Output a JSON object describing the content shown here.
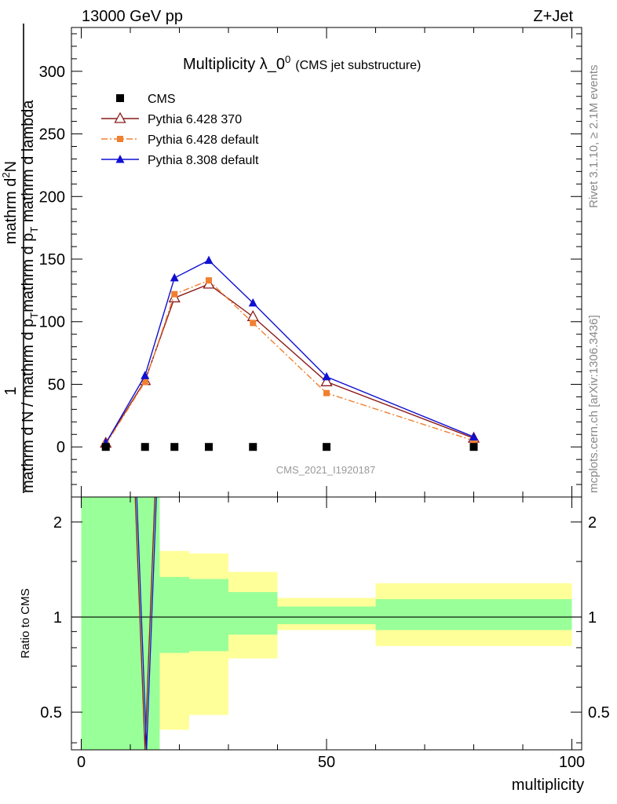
{
  "header": {
    "left": "13000 GeV pp",
    "right": "Z+Jet"
  },
  "side_labels": {
    "top": "Rivet 3.1.10, ≥ 2.1M events",
    "bottom": "mcplots.cern.ch [arXiv:1306.3436]"
  },
  "chart_data": {
    "type": "line",
    "title_main": "Multiplicity λ_0",
    "title_sup": "0",
    "title_note": "(CMS jet substructure)",
    "watermark": "CMS_2021_I1920187",
    "xlabel": "multiplicity",
    "ylabel_numerator": "1",
    "ylabel_denominator_1": "mathrm d N / mathrm d p",
    "ylabel_denominator_sub1": "T",
    "ylabel_denominator_2": "mathrm d p",
    "ylabel_denominator_sub2": "T",
    "ylabel_denominator_3": " mathrm d lambda",
    "ylabel_numerator_full": "mathrm d",
    "ylabel_numerator_sup": "2",
    "ylabel_numerator_end": "N",
    "ratio_ylabel": "Ratio to CMS",
    "xlim": [
      -2,
      102
    ],
    "ylim": [
      -40,
      335
    ],
    "ratio_ylim": [
      0.38,
      2.4
    ],
    "ratio_scale": "log",
    "x_ticks": [
      0,
      50,
      100
    ],
    "x_tick_labels": [
      "0",
      "50",
      "100"
    ],
    "y_ticks": [
      0,
      50,
      100,
      150,
      200,
      250,
      300
    ],
    "y_tick_labels": [
      "0",
      "50",
      "100",
      "150",
      "200",
      "250",
      "300"
    ],
    "ratio_ticks": [
      0.5,
      1,
      2
    ],
    "ratio_tick_labels": [
      "0.5",
      "1",
      "2"
    ],
    "legend_position": "top-left",
    "x": [
      5,
      13,
      19,
      26,
      35,
      50,
      80
    ],
    "series": [
      {
        "name": "CMS",
        "color": "#000000",
        "marker": "square",
        "values": [
          0,
          0,
          0,
          0,
          0,
          0,
          0
        ]
      },
      {
        "name": "Pythia 6.428 370",
        "color": "#8b1a1a",
        "marker": "open-triangle",
        "values": [
          3,
          53,
          119,
          130,
          104,
          52,
          7
        ]
      },
      {
        "name": "Pythia 6.428 default",
        "color": "#f08030",
        "marker": "small-square",
        "values": [
          2,
          52,
          122,
          133,
          99,
          43,
          5
        ]
      },
      {
        "name": "Pythia 8.308 default",
        "color": "#1010d0",
        "marker": "triangle",
        "values": [
          3,
          57,
          135,
          149,
          115,
          56,
          8
        ]
      }
    ],
    "ratio_bands": {
      "bins": [
        0,
        16,
        22,
        30,
        40,
        60,
        100
      ],
      "green_low": [
        0.38,
        0.77,
        0.78,
        0.88,
        0.95,
        0.91
      ],
      "green_high": [
        2.4,
        1.34,
        1.32,
        1.2,
        1.08,
        1.14
      ],
      "yellow_low": [
        0.38,
        0.44,
        0.49,
        0.74,
        0.91,
        0.81
      ],
      "yellow_high": [
        2.4,
        1.62,
        1.59,
        1.39,
        1.15,
        1.28
      ],
      "green_color": "#99ff99",
      "yellow_color": "#ffff99"
    },
    "ratio_line": {
      "color": "#1010d0",
      "x": [
        11,
        13,
        15
      ],
      "values": [
        2.4,
        0.38,
        2.4
      ]
    }
  }
}
